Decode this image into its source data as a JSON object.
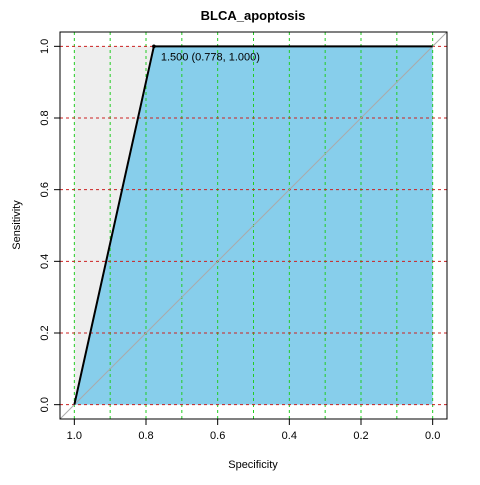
{
  "chart_data": {
    "type": "roc",
    "title": "BLCA_apoptosis",
    "x_label": "Specificity",
    "y_label": "Sensitivity",
    "series": [
      {
        "color": "#000000",
        "fill": "#87ceeb",
        "x": [
          1.0,
          0.778,
          0.0
        ],
        "values": [
          0.0,
          1.0,
          1.0
        ]
      }
    ],
    "xlim": [
      1.04,
      -0.04
    ],
    "ylim": [
      -0.04,
      1.04
    ],
    "xticks": [
      {
        "value": 1.0,
        "label": "1.0"
      },
      {
        "value": 0.8,
        "label": "0.8"
      },
      {
        "value": 0.6,
        "label": "0.6"
      },
      {
        "value": 0.4,
        "label": "0.4"
      },
      {
        "value": 0.2,
        "label": "0.2"
      },
      {
        "value": 0.0,
        "label": "0.0"
      }
    ],
    "yticks": [
      {
        "value": 0.0,
        "label": "0.0"
      },
      {
        "value": 0.2,
        "label": "0.2"
      },
      {
        "value": 0.4,
        "label": "0.4"
      },
      {
        "value": 0.6,
        "label": "0.6"
      },
      {
        "value": 0.8,
        "label": "0.8"
      },
      {
        "value": 1.0,
        "label": "1.0"
      }
    ],
    "x_grid": [
      1.0,
      0.9,
      0.8,
      0.7,
      0.6,
      0.5,
      0.4,
      0.3,
      0.2,
      0.1,
      0.0
    ],
    "x_grid_color": "#22cc22",
    "y_grid": [
      0.0,
      0.2,
      0.4,
      0.6,
      0.8,
      1.0
    ],
    "y_grid_color": "#cc2222",
    "annotation": {
      "text": "1.500 (0.778, 1.000)",
      "x": 0.778,
      "y": 1.0
    }
  }
}
